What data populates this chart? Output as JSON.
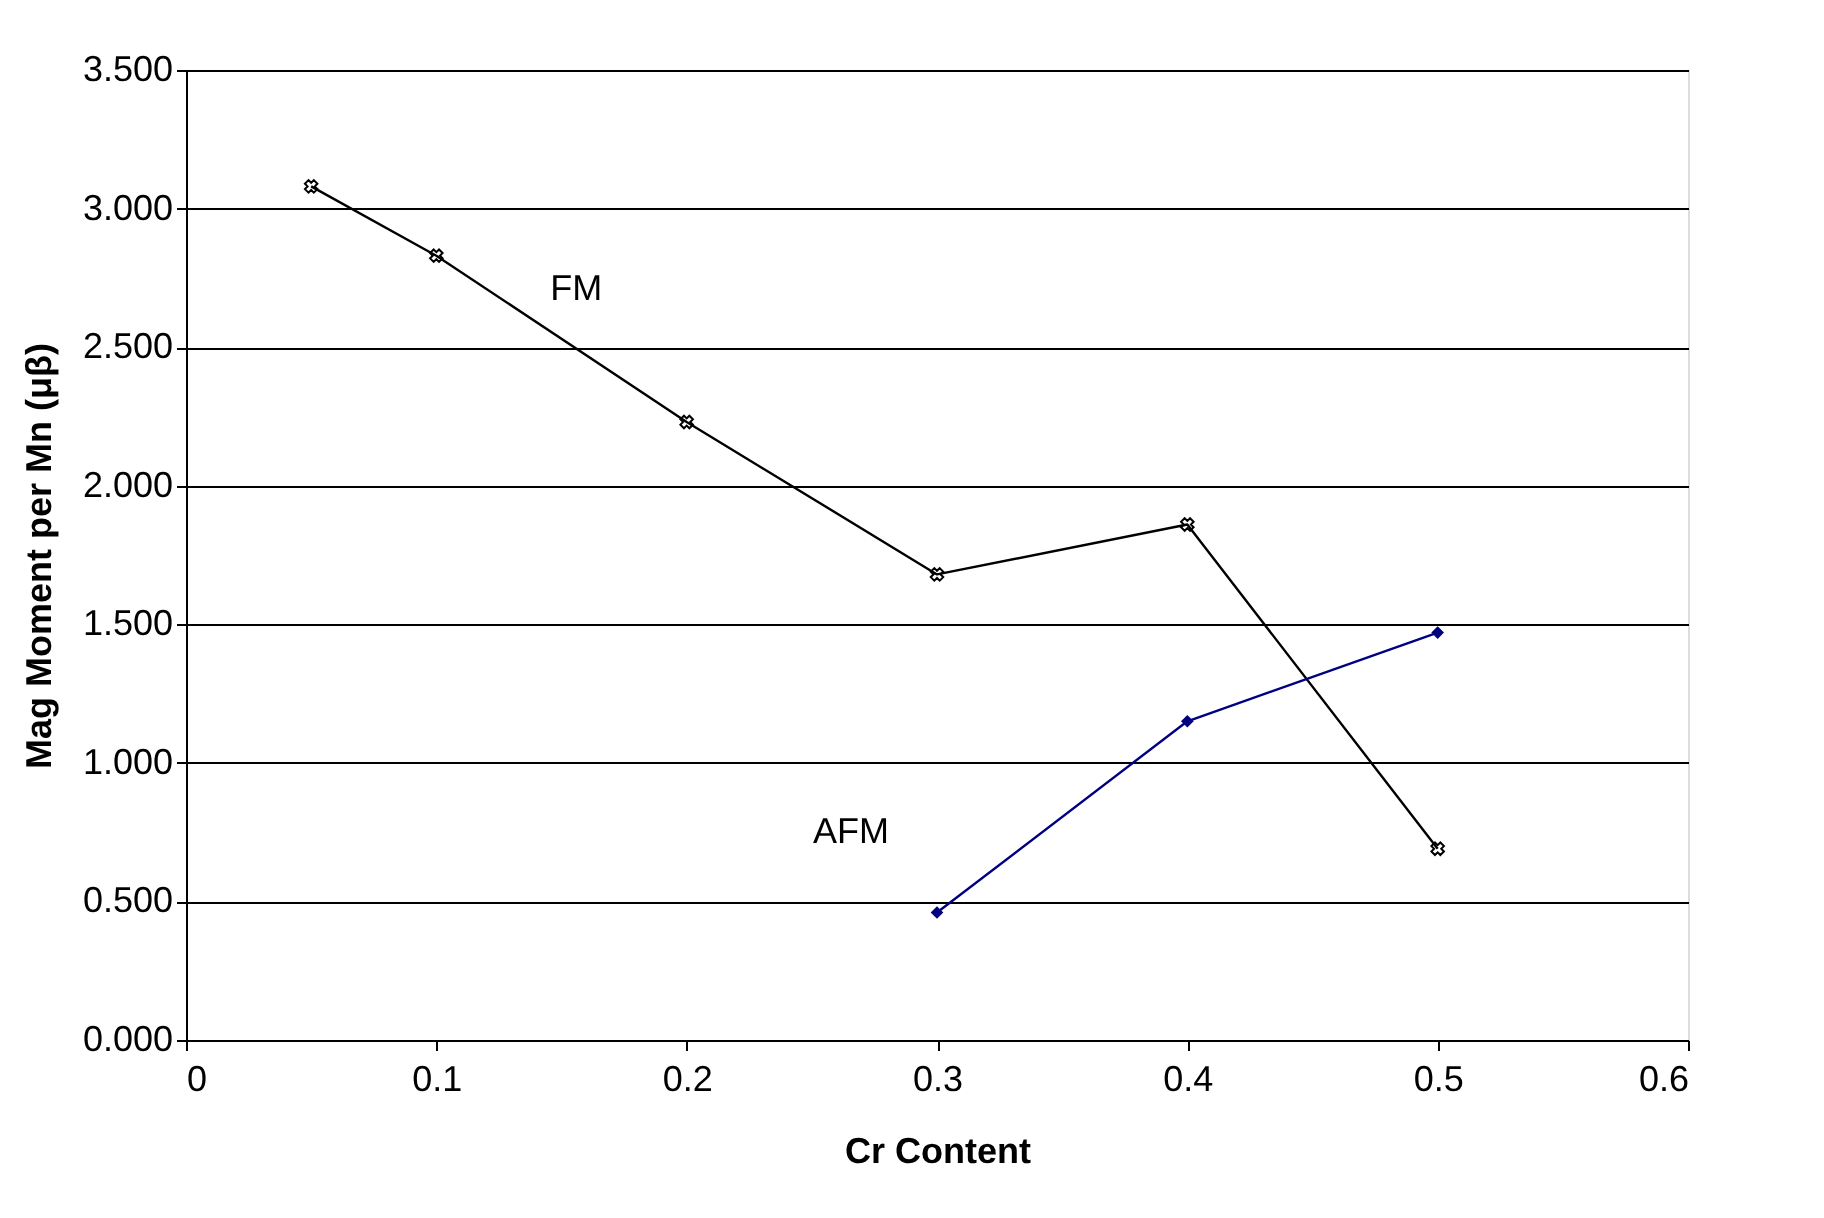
{
  "chart_data": {
    "type": "line",
    "xlabel": "Cr Content",
    "ylabel": "Mag Moment per Mn (μβ)",
    "xlim": [
      0,
      0.6
    ],
    "xticks": [
      0,
      0.1,
      0.2,
      0.3,
      0.4,
      0.5,
      0.6
    ],
    "ylim": [
      0,
      3.5
    ],
    "yticks": [
      {
        "value": 0,
        "label": "0.000"
      },
      {
        "value": 0.5,
        "label": "0.500"
      },
      {
        "value": 1,
        "label": "1.000"
      },
      {
        "value": 1.5,
        "label": "1.500"
      },
      {
        "value": 2,
        "label": "2.000"
      },
      {
        "value": 2.5,
        "label": "2.500"
      },
      {
        "value": 3,
        "label": "3.000"
      },
      {
        "value": 3.5,
        "label": "3.500"
      }
    ],
    "grid": "y",
    "legend": false,
    "series": [
      {
        "name": "FM",
        "color": "#000000",
        "marker": "cross",
        "x": [
          0.05,
          0.1,
          0.2,
          0.3,
          0.4,
          0.5
        ],
        "values": [
          3.08,
          2.83,
          2.23,
          1.68,
          1.86,
          0.69
        ]
      },
      {
        "name": "AFM",
        "color": "#000080",
        "marker": "diamond",
        "x": [
          0.3,
          0.4,
          0.5
        ],
        "values": [
          0.46,
          1.15,
          1.47
        ]
      }
    ]
  }
}
